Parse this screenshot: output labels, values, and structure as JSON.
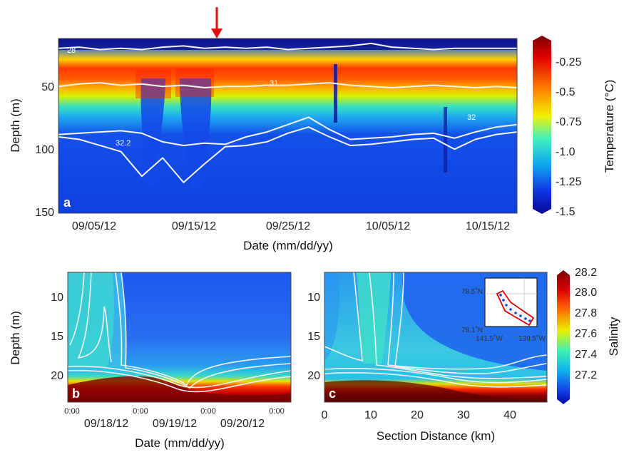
{
  "chart_data": [
    {
      "panel": "a",
      "type": "heatmap",
      "xlabel": "Date (mm/dd/yy)",
      "ylabel": "Depth (m)",
      "x_ticks": [
        "09/05/12",
        "09/15/12",
        "09/25/12",
        "10/05/12",
        "10/15/12"
      ],
      "y_ticks": [
        50,
        100,
        150
      ],
      "ylim": [
        150,
        8
      ],
      "colorbar": {
        "label": "Temperature (°C)",
        "ticks": [
          "-0.25",
          "-0.5",
          "-0.75",
          "-1.0",
          "-1.25",
          "-1.5"
        ],
        "range": [
          -1.5,
          -0.1
        ]
      },
      "contour_labels": [
        "28",
        "31",
        "32",
        "32.2"
      ],
      "marker": {
        "shape": "red-arrow",
        "date": "09/16/12"
      },
      "isohalines": [
        {
          "level": "28",
          "depths": [
            16,
            15,
            17,
            16,
            17,
            15,
            14,
            16,
            15,
            16,
            15,
            17,
            16,
            15,
            14,
            12,
            15,
            16,
            17,
            16,
            16,
            16,
            16
          ]
        },
        {
          "level": "31",
          "depths": [
            47,
            45,
            44,
            46,
            45,
            47,
            46,
            48,
            47,
            47,
            46,
            46,
            45,
            44,
            46,
            47,
            48,
            47,
            46,
            47,
            48,
            47,
            48
          ]
        },
        {
          "level": "32",
          "depths": [
            86,
            85,
            84,
            83,
            85,
            92,
            95,
            93,
            94,
            88,
            84,
            78,
            72,
            82,
            90,
            89,
            88,
            86,
            85,
            89,
            84,
            80,
            78
          ]
        },
        {
          "level": "32.2",
          "depths": [
            88,
            90,
            95,
            100,
            120,
            105,
            125,
            110,
            96,
            95,
            92,
            85,
            80,
            88,
            95,
            94,
            92,
            90,
            89,
            98,
            90,
            86,
            84
          ]
        }
      ]
    },
    {
      "panel": "b",
      "type": "heatmap",
      "xlabel": "Date (mm/dd/yy)",
      "ylabel": "Depth (m)",
      "x_ticks": [
        "09/18/12",
        "09/19/12",
        "09/20/12"
      ],
      "x_minor": [
        "0:00",
        "0:00",
        "0:00",
        "0:00"
      ],
      "y_ticks": [
        10,
        15,
        20
      ],
      "ylim": [
        23,
        7
      ]
    },
    {
      "panel": "c",
      "type": "heatmap",
      "xlabel": "Section Distance (km)",
      "x_ticks": [
        0,
        10,
        20,
        30,
        40
      ],
      "xlim": [
        0,
        48
      ],
      "y_ticks": [
        10,
        15,
        20
      ],
      "ylim": [
        23,
        7
      ],
      "colorbar": {
        "label": "Salinity",
        "ticks": [
          "28.2",
          "28.0",
          "27.8",
          "27.6",
          "27.4",
          "27.2"
        ],
        "range": [
          27.0,
          28.2
        ]
      },
      "inset": {
        "lat_labels": [
          "78.5˚N",
          "78.1˚N"
        ],
        "lon_labels": [
          "141.5˚W",
          "139.5˚W"
        ]
      }
    }
  ]
}
